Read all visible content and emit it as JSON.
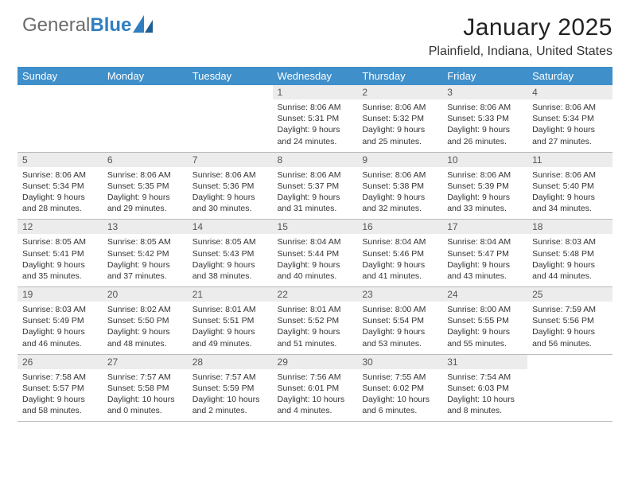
{
  "brand": {
    "general": "General",
    "blue": "Blue"
  },
  "title": {
    "month": "January 2025",
    "location": "Plainfield, Indiana, United States"
  },
  "calendar": {
    "header_bg": "#3f8fca",
    "header_fg": "#ffffff",
    "daynum_bg": "#ececec",
    "border_color": "#bcbcbc",
    "columns": [
      "Sunday",
      "Monday",
      "Tuesday",
      "Wednesday",
      "Thursday",
      "Friday",
      "Saturday"
    ],
    "weeks": [
      [
        {
          "n": "",
          "sr": "",
          "ss": "",
          "d1": "",
          "d2": ""
        },
        {
          "n": "",
          "sr": "",
          "ss": "",
          "d1": "",
          "d2": ""
        },
        {
          "n": "",
          "sr": "",
          "ss": "",
          "d1": "",
          "d2": ""
        },
        {
          "n": "1",
          "sr": "Sunrise: 8:06 AM",
          "ss": "Sunset: 5:31 PM",
          "d1": "Daylight: 9 hours",
          "d2": "and 24 minutes."
        },
        {
          "n": "2",
          "sr": "Sunrise: 8:06 AM",
          "ss": "Sunset: 5:32 PM",
          "d1": "Daylight: 9 hours",
          "d2": "and 25 minutes."
        },
        {
          "n": "3",
          "sr": "Sunrise: 8:06 AM",
          "ss": "Sunset: 5:33 PM",
          "d1": "Daylight: 9 hours",
          "d2": "and 26 minutes."
        },
        {
          "n": "4",
          "sr": "Sunrise: 8:06 AM",
          "ss": "Sunset: 5:34 PM",
          "d1": "Daylight: 9 hours",
          "d2": "and 27 minutes."
        }
      ],
      [
        {
          "n": "5",
          "sr": "Sunrise: 8:06 AM",
          "ss": "Sunset: 5:34 PM",
          "d1": "Daylight: 9 hours",
          "d2": "and 28 minutes."
        },
        {
          "n": "6",
          "sr": "Sunrise: 8:06 AM",
          "ss": "Sunset: 5:35 PM",
          "d1": "Daylight: 9 hours",
          "d2": "and 29 minutes."
        },
        {
          "n": "7",
          "sr": "Sunrise: 8:06 AM",
          "ss": "Sunset: 5:36 PM",
          "d1": "Daylight: 9 hours",
          "d2": "and 30 minutes."
        },
        {
          "n": "8",
          "sr": "Sunrise: 8:06 AM",
          "ss": "Sunset: 5:37 PM",
          "d1": "Daylight: 9 hours",
          "d2": "and 31 minutes."
        },
        {
          "n": "9",
          "sr": "Sunrise: 8:06 AM",
          "ss": "Sunset: 5:38 PM",
          "d1": "Daylight: 9 hours",
          "d2": "and 32 minutes."
        },
        {
          "n": "10",
          "sr": "Sunrise: 8:06 AM",
          "ss": "Sunset: 5:39 PM",
          "d1": "Daylight: 9 hours",
          "d2": "and 33 minutes."
        },
        {
          "n": "11",
          "sr": "Sunrise: 8:06 AM",
          "ss": "Sunset: 5:40 PM",
          "d1": "Daylight: 9 hours",
          "d2": "and 34 minutes."
        }
      ],
      [
        {
          "n": "12",
          "sr": "Sunrise: 8:05 AM",
          "ss": "Sunset: 5:41 PM",
          "d1": "Daylight: 9 hours",
          "d2": "and 35 minutes."
        },
        {
          "n": "13",
          "sr": "Sunrise: 8:05 AM",
          "ss": "Sunset: 5:42 PM",
          "d1": "Daylight: 9 hours",
          "d2": "and 37 minutes."
        },
        {
          "n": "14",
          "sr": "Sunrise: 8:05 AM",
          "ss": "Sunset: 5:43 PM",
          "d1": "Daylight: 9 hours",
          "d2": "and 38 minutes."
        },
        {
          "n": "15",
          "sr": "Sunrise: 8:04 AM",
          "ss": "Sunset: 5:44 PM",
          "d1": "Daylight: 9 hours",
          "d2": "and 40 minutes."
        },
        {
          "n": "16",
          "sr": "Sunrise: 8:04 AM",
          "ss": "Sunset: 5:46 PM",
          "d1": "Daylight: 9 hours",
          "d2": "and 41 minutes."
        },
        {
          "n": "17",
          "sr": "Sunrise: 8:04 AM",
          "ss": "Sunset: 5:47 PM",
          "d1": "Daylight: 9 hours",
          "d2": "and 43 minutes."
        },
        {
          "n": "18",
          "sr": "Sunrise: 8:03 AM",
          "ss": "Sunset: 5:48 PM",
          "d1": "Daylight: 9 hours",
          "d2": "and 44 minutes."
        }
      ],
      [
        {
          "n": "19",
          "sr": "Sunrise: 8:03 AM",
          "ss": "Sunset: 5:49 PM",
          "d1": "Daylight: 9 hours",
          "d2": "and 46 minutes."
        },
        {
          "n": "20",
          "sr": "Sunrise: 8:02 AM",
          "ss": "Sunset: 5:50 PM",
          "d1": "Daylight: 9 hours",
          "d2": "and 48 minutes."
        },
        {
          "n": "21",
          "sr": "Sunrise: 8:01 AM",
          "ss": "Sunset: 5:51 PM",
          "d1": "Daylight: 9 hours",
          "d2": "and 49 minutes."
        },
        {
          "n": "22",
          "sr": "Sunrise: 8:01 AM",
          "ss": "Sunset: 5:52 PM",
          "d1": "Daylight: 9 hours",
          "d2": "and 51 minutes."
        },
        {
          "n": "23",
          "sr": "Sunrise: 8:00 AM",
          "ss": "Sunset: 5:54 PM",
          "d1": "Daylight: 9 hours",
          "d2": "and 53 minutes."
        },
        {
          "n": "24",
          "sr": "Sunrise: 8:00 AM",
          "ss": "Sunset: 5:55 PM",
          "d1": "Daylight: 9 hours",
          "d2": "and 55 minutes."
        },
        {
          "n": "25",
          "sr": "Sunrise: 7:59 AM",
          "ss": "Sunset: 5:56 PM",
          "d1": "Daylight: 9 hours",
          "d2": "and 56 minutes."
        }
      ],
      [
        {
          "n": "26",
          "sr": "Sunrise: 7:58 AM",
          "ss": "Sunset: 5:57 PM",
          "d1": "Daylight: 9 hours",
          "d2": "and 58 minutes."
        },
        {
          "n": "27",
          "sr": "Sunrise: 7:57 AM",
          "ss": "Sunset: 5:58 PM",
          "d1": "Daylight: 10 hours",
          "d2": "and 0 minutes."
        },
        {
          "n": "28",
          "sr": "Sunrise: 7:57 AM",
          "ss": "Sunset: 5:59 PM",
          "d1": "Daylight: 10 hours",
          "d2": "and 2 minutes."
        },
        {
          "n": "29",
          "sr": "Sunrise: 7:56 AM",
          "ss": "Sunset: 6:01 PM",
          "d1": "Daylight: 10 hours",
          "d2": "and 4 minutes."
        },
        {
          "n": "30",
          "sr": "Sunrise: 7:55 AM",
          "ss": "Sunset: 6:02 PM",
          "d1": "Daylight: 10 hours",
          "d2": "and 6 minutes."
        },
        {
          "n": "31",
          "sr": "Sunrise: 7:54 AM",
          "ss": "Sunset: 6:03 PM",
          "d1": "Daylight: 10 hours",
          "d2": "and 8 minutes."
        },
        {
          "n": "",
          "sr": "",
          "ss": "",
          "d1": "",
          "d2": ""
        }
      ]
    ]
  }
}
